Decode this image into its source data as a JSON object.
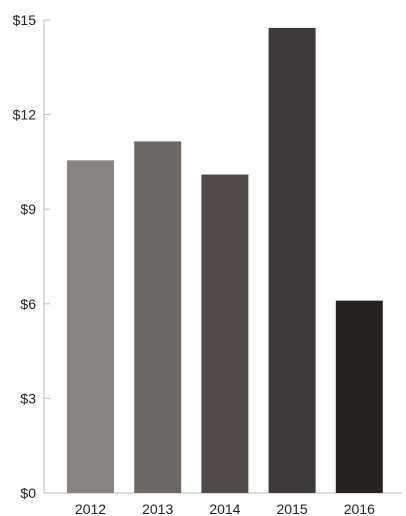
{
  "chart_data": {
    "type": "bar",
    "title": "",
    "xlabel": "",
    "ylabel": "",
    "categories": [
      "2012",
      "2013",
      "2014",
      "2015",
      "2016"
    ],
    "values": [
      10.55,
      11.15,
      10.1,
      14.75,
      6.1
    ],
    "ylim": [
      0,
      15
    ],
    "yticks": [
      0,
      3,
      6,
      9,
      12,
      15
    ],
    "ytick_labels": [
      "$0",
      "$3",
      "$6",
      "$9",
      "$12",
      "$15"
    ],
    "grid": false,
    "legend": "none",
    "bar_colors": [
      "#8a8480",
      "#6e6865",
      "#524b4a",
      "#3d3938",
      "#252220"
    ],
    "axis_color": "#bdbdbd",
    "text_color": "#222222"
  }
}
